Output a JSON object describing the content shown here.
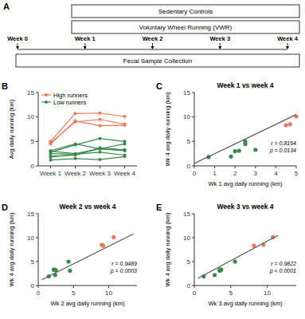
{
  "chart_data": [
    {
      "type": "diagram",
      "label": "A",
      "annotations": [
        "Sedentary Controls",
        "Voluntary Wheel Running (VWR)",
        "Fecal Sample Collection"
      ],
      "categories": [
        "Week 0",
        "Week 1",
        "Week 2",
        "Week 3",
        "Week 4"
      ]
    },
    {
      "type": "line",
      "label": "B",
      "ylabel": "Avg daily running (km)",
      "categories": [
        "Week 1",
        "Week 2",
        "Week 3",
        "Week 4"
      ],
      "ylim": [
        0,
        15
      ],
      "yticks": [
        0,
        5,
        10,
        15
      ],
      "marker": "circle",
      "legend": "upper left",
      "series": [
        {
          "name": "High runners",
          "color": "#E87C5A",
          "values": [
            4.7,
            9.0,
            9.5,
            8.5
          ]
        },
        {
          "name": "High runners",
          "color": "#E87C5A",
          "values": [
            5.0,
            10.7,
            10.8,
            10.1
          ]
        },
        {
          "name": "High runners",
          "color": "#E87C5A",
          "values": [
            4.5,
            9.2,
            8.2,
            8.3
          ]
        },
        {
          "name": "Low runners",
          "color": "#3A8A4E",
          "values": [
            3.0,
            2.5,
            3.5,
            3.2
          ]
        },
        {
          "name": "Low runners",
          "color": "#3A8A4E",
          "values": [
            2.8,
            4.3,
            5.6,
            5.0
          ]
        },
        {
          "name": "Low runners",
          "color": "#3A8A4E",
          "values": [
            1.8,
            2.3,
            3.5,
            4.5
          ]
        },
        {
          "name": "Low runners",
          "color": "#3A8A4E",
          "values": [
            2.0,
            2.2,
            3.7,
            3.3
          ]
        },
        {
          "name": "Low runners",
          "color": "#3A8A4E",
          "values": [
            1.2,
            1.5,
            1.3,
            1.9
          ]
        },
        {
          "name": "Low runners",
          "color": "#3A8A4E",
          "values": [
            3.1,
            4.5,
            3.5,
            3.1
          ]
        },
        {
          "name": "Low runners",
          "color": "#3A8A4E",
          "values": [
            2.5,
            2.4,
            2.8,
            2.2
          ]
        }
      ]
    },
    {
      "type": "scatter",
      "label": "C",
      "title": "Week 1 vs week 4",
      "xlabel": "Wk 1 avg daily running (km)",
      "ylabel": "Wk 4 avg daily running (km)",
      "xlim": [
        0,
        5
      ],
      "ylim": [
        0,
        15
      ],
      "xticks": [
        0,
        1,
        2,
        3,
        4,
        5
      ],
      "yticks": [
        0,
        5,
        10,
        15
      ],
      "annotations": [
        "r = 0.8164",
        "p = 0.0134"
      ],
      "series": [
        {
          "color": "#E87C5A",
          "x": [
            4.7,
            5.0,
            4.5
          ],
          "values": [
            8.5,
            10.1,
            8.3
          ]
        },
        {
          "color": "#3A8A4E",
          "x": [
            0.7,
            2.0,
            2.5,
            3.0,
            1.8,
            2.5,
            2.2
          ],
          "values": [
            1.8,
            3.0,
            4.5,
            3.3,
            1.9,
            5.0,
            3.1
          ]
        },
        {
          "type": "line",
          "color": "#555555",
          "x": [
            0,
            5
          ],
          "values": [
            0.5,
            10.5
          ]
        }
      ]
    },
    {
      "type": "scatter",
      "label": "D",
      "title": "Week 2 vs week 4",
      "xlabel": "Wk 2 avg daily running (km)",
      "ylabel": "Wk 4 avg daily running (km)",
      "xlim": [
        0,
        14
      ],
      "ylim": [
        0,
        15
      ],
      "xticks": [
        0,
        5,
        10
      ],
      "yticks": [
        0,
        5,
        10,
        15
      ],
      "annotations": [
        "r = 0.9489",
        "p = 0.0003"
      ],
      "series": [
        {
          "color": "#E87C5A",
          "x": [
            9.0,
            10.7,
            9.2
          ],
          "values": [
            8.5,
            10.1,
            8.3
          ]
        },
        {
          "color": "#3A8A4E",
          "x": [
            2.5,
            4.3,
            2.3,
            2.2,
            1.5,
            4.5,
            2.4
          ],
          "values": [
            3.2,
            5.0,
            3.3,
            3.3,
            1.9,
            3.1,
            2.2
          ]
        },
        {
          "type": "line",
          "color": "#555555",
          "x": [
            0.5,
            13.5
          ],
          "values": [
            1.2,
            10.8
          ]
        }
      ]
    },
    {
      "type": "scatter",
      "label": "E",
      "title": "Week 3 vs week 4",
      "xlabel": "Wk 3 avg daily running (km)",
      "ylabel": "Wk 4 avg daily running (km)",
      "xlim": [
        0,
        14
      ],
      "ylim": [
        0,
        15
      ],
      "xticks": [
        0,
        5,
        10
      ],
      "yticks": [
        0,
        5,
        10,
        15
      ],
      "annotations": [
        "r = 0.9822",
        "p < 0.0001"
      ],
      "series": [
        {
          "color": "#E87C5A",
          "x": [
            9.5,
            10.8,
            8.2
          ],
          "values": [
            8.5,
            10.1,
            8.3
          ]
        },
        {
          "color": "#3A8A4E",
          "x": [
            3.5,
            5.6,
            3.5,
            3.7,
            1.3,
            3.5,
            2.8
          ],
          "values": [
            3.2,
            5.0,
            3.3,
            3.3,
            1.9,
            3.1,
            2.2
          ]
        },
        {
          "type": "line",
          "color": "#555555",
          "x": [
            0.5,
            11.5
          ],
          "values": [
            1.5,
            10.5
          ]
        }
      ]
    }
  ]
}
